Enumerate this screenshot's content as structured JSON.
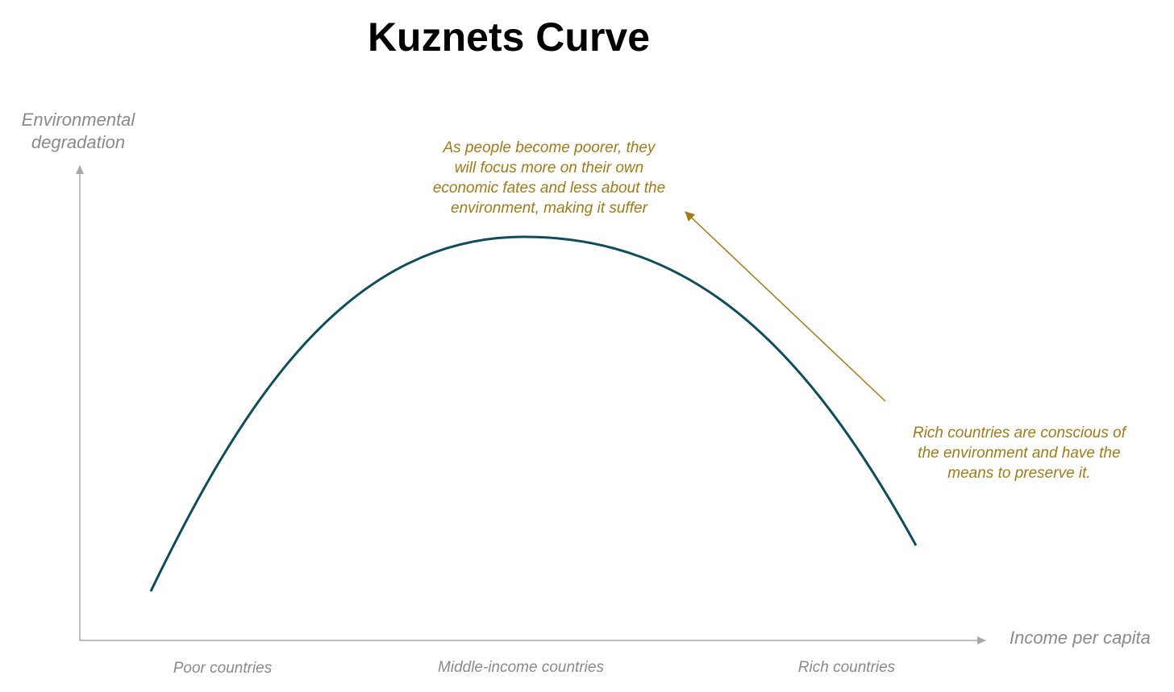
{
  "title": "Kuznets Curve",
  "y_axis": {
    "label_lines": [
      "Environmental",
      "degradation"
    ]
  },
  "x_axis": {
    "label": "Income per capita"
  },
  "categories": [
    "Poor countries",
    "Middle-income countries",
    "Rich countries"
  ],
  "annotations": [
    {
      "lines": [
        "As people become poorer, they",
        "will focus more on their own",
        "economic fates and less about the",
        "environment, making it suffer"
      ]
    },
    {
      "lines": [
        "Rich countries are conscious of",
        "the environment and have the",
        "means to preserve it."
      ]
    }
  ]
}
